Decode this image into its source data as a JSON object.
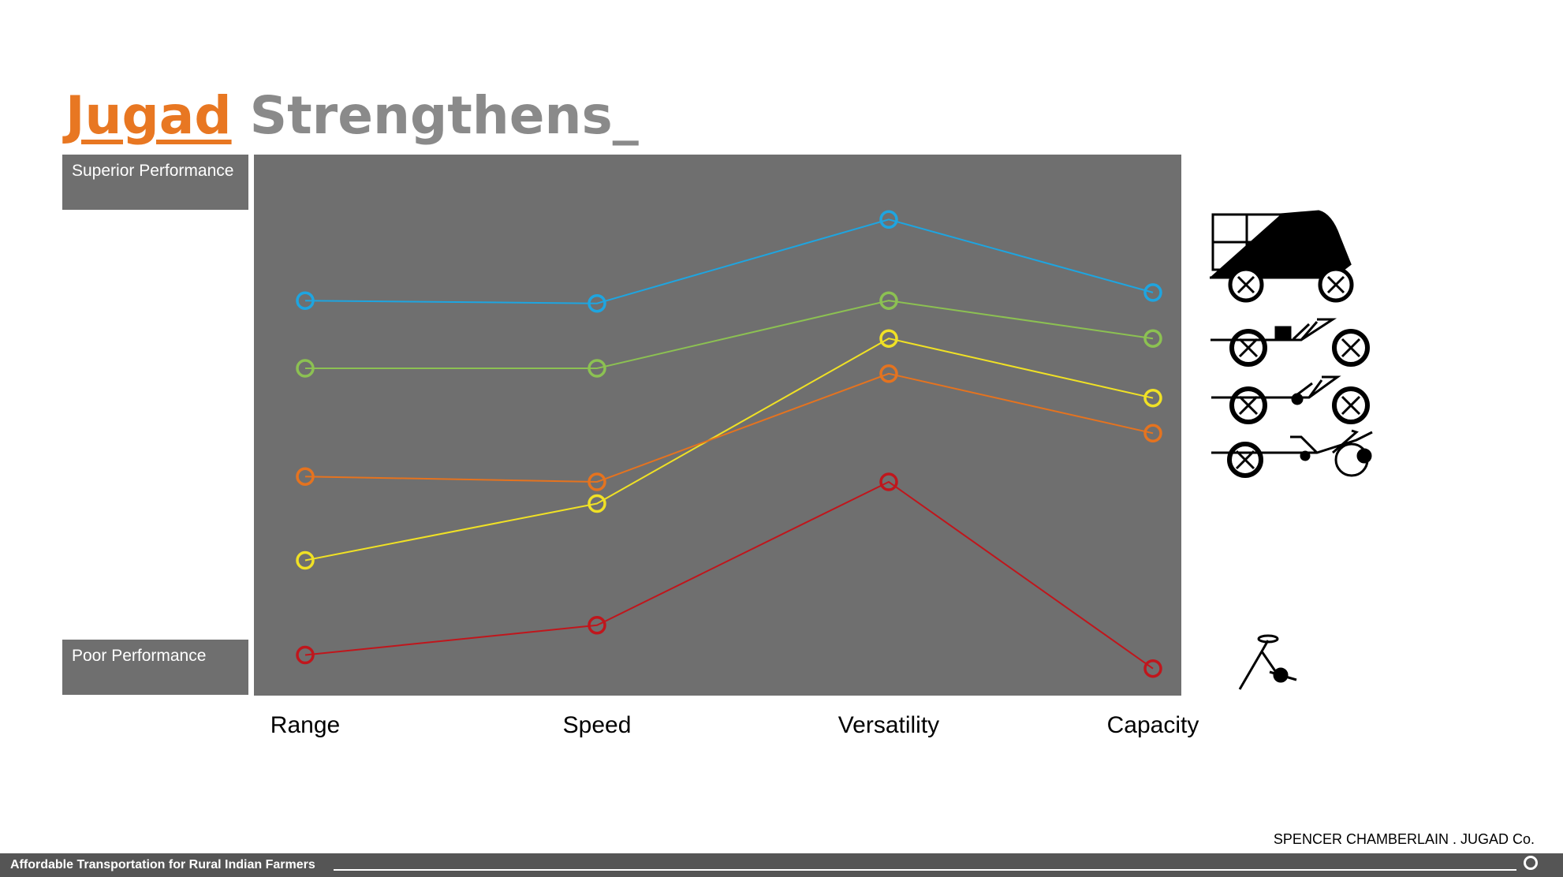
{
  "slide": {
    "title_accent": "Jugad",
    "title_rest": "Strengthens_",
    "label_top": "Superior Performance",
    "label_bottom": "Poor Performance",
    "author": "SPENCER CHAMBERLAIN  .  JUGAD Co.",
    "footer": "Affordable Transportation for Rural Indian Farmers"
  },
  "colors": {
    "accent": "#E87722",
    "title_gray": "#8a8a8a",
    "plot_bg": "#6f6f6f",
    "footer_bg": "#555555"
  },
  "icons": [
    "cargo-tricycle-icon",
    "motor-tricycle-icon",
    "assisted-tricycle-icon",
    "pedal-tricycle-icon",
    "wheel-handle-icon"
  ],
  "chart_data": {
    "type": "line",
    "categories": [
      "Range",
      "Speed",
      "Versatility",
      "Capacity"
    ],
    "ylim": [
      0,
      10
    ],
    "grid": false,
    "legend": "none",
    "series": [
      {
        "color": "#1ea5e0",
        "values": [
          7.3,
          7.25,
          8.8,
          7.45
        ]
      },
      {
        "color": "#8cc152",
        "values": [
          6.05,
          6.05,
          7.3,
          6.6
        ]
      },
      {
        "color": "#f0e125",
        "values": [
          2.5,
          3.55,
          6.6,
          5.5
        ]
      },
      {
        "color": "#e5731f",
        "values": [
          4.05,
          3.95,
          5.95,
          4.85
        ]
      },
      {
        "color": "#c0161c",
        "values": [
          0.75,
          1.3,
          3.95,
          0.5
        ]
      }
    ]
  }
}
